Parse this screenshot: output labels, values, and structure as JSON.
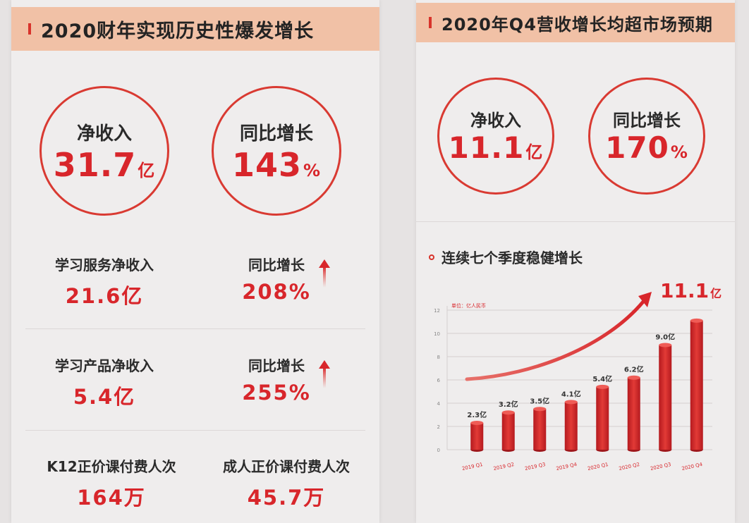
{
  "left": {
    "title": "2020财年实现历史性爆发增长",
    "circle1": {
      "label": "净收入",
      "value": "31.7",
      "unit": "亿"
    },
    "circle2": {
      "label": "同比增长",
      "value": "143",
      "unit": "%"
    },
    "rows": [
      {
        "left_label": "学习服务净收入",
        "left_value": "21.6亿",
        "right_label": "同比增长",
        "right_value": "208%"
      },
      {
        "left_label": "学习产品净收入",
        "left_value": "5.4亿",
        "right_label": "同比增长",
        "right_value": "255%"
      },
      {
        "left_label": "K12正价课付费人次",
        "left_value": "164万",
        "right_label": "成人正价课付费人次",
        "right_value": "45.7万"
      }
    ]
  },
  "right": {
    "title": "2020年Q4营收增长均超市场预期",
    "circle1": {
      "label": "净收入",
      "value": "11.1",
      "unit": "亿"
    },
    "circle2": {
      "label": "同比增长",
      "value": "170",
      "unit": "%"
    },
    "subtitle": "连续七个季度稳健增长",
    "highlight": {
      "value": "11.1",
      "unit": "亿"
    },
    "unit_note": "单位：亿人民币"
  },
  "colors": {
    "accent": "#d8262b",
    "header_bg": "#f1c1a6"
  },
  "chart_data": {
    "type": "bar",
    "title": "连续七个季度稳健增长",
    "unit": "亿人民币",
    "categories": [
      "2019 Q1",
      "2019 Q2",
      "2019 Q3",
      "2019 Q4",
      "2020 Q1",
      "2020 Q2",
      "2020 Q3",
      "2020 Q4"
    ],
    "values": [
      2.3,
      3.2,
      3.5,
      4.1,
      5.4,
      6.2,
      9.0,
      11.1
    ],
    "data_labels": [
      "2.3亿",
      "3.2亿",
      "3.5亿",
      "4.1亿",
      "5.4亿",
      "6.2亿",
      "9.0亿",
      ""
    ],
    "yticks": [
      0,
      2,
      4,
      6,
      8,
      10,
      12
    ],
    "ylim": [
      0,
      12
    ],
    "grid": true
  }
}
